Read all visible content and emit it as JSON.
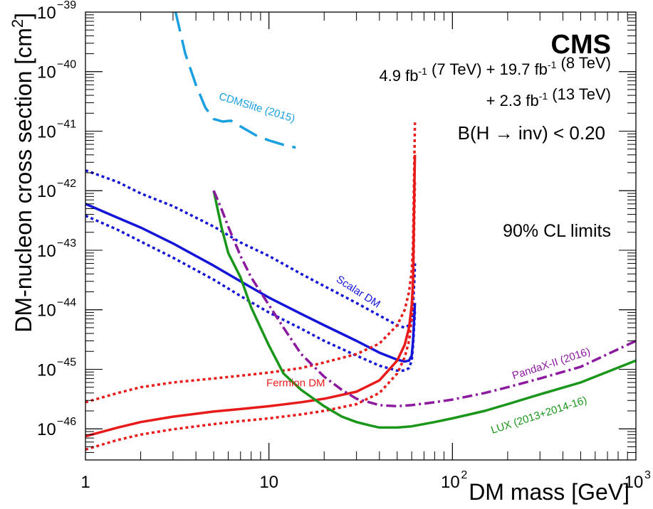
{
  "chart_data": {
    "type": "line",
    "x_scale": "log",
    "y_scale": "log",
    "xlim": [
      1,
      1000
    ],
    "ylim": [
      3e-47,
      1e-39
    ],
    "xlabel": "DM mass [GeV]",
    "ylabel": "DM-nucleon cross section [cm",
    "ylabel_sup": "2",
    "ylabel_end": "]",
    "x_ticks": [
      {
        "value": 1,
        "base": "1",
        "exp": ""
      },
      {
        "value": 10,
        "base": "10",
        "exp": ""
      },
      {
        "value": 100,
        "base": "10",
        "exp": "2"
      },
      {
        "value": 1000,
        "base": "10",
        "exp": "3"
      }
    ],
    "y_ticks": [
      {
        "value": 1e-46,
        "base": "10",
        "exp": "−46"
      },
      {
        "value": 1e-45,
        "base": "10",
        "exp": "−45"
      },
      {
        "value": 1e-44,
        "base": "10",
        "exp": "−44"
      },
      {
        "value": 1e-43,
        "base": "10",
        "exp": "−43"
      },
      {
        "value": 1e-42,
        "base": "10",
        "exp": "−42"
      },
      {
        "value": 1e-41,
        "base": "10",
        "exp": "−41"
      },
      {
        "value": 1e-40,
        "base": "10",
        "exp": "−40"
      },
      {
        "value": 1e-39,
        "base": "10",
        "exp": "−39"
      }
    ],
    "grid": false,
    "annotations": {
      "experiment": "CMS",
      "lumi_line1": [
        {
          "t": "4.9 fb",
          "sup": "-1"
        },
        {
          "t": " (7 TeV) + 19.7 fb",
          "sup": "-1"
        },
        {
          "t": " (8 TeV)",
          "sup": ""
        }
      ],
      "lumi_line2": [
        {
          "t": "+ 2.3 fb",
          "sup": "-1"
        },
        {
          "t": " (13 TeV)",
          "sup": ""
        }
      ],
      "branching": "B(H → inv) < 0.20",
      "cl_limits": "90% CL limits"
    },
    "series": [
      {
        "label": "CDMSlite (2015)",
        "color": "#1aa0e0",
        "style": "dashed",
        "points": [
          [
            3.1,
            1e-39
          ],
          [
            3.5,
            2e-40
          ],
          [
            4.0,
            6e-41
          ],
          [
            4.5,
            2.5e-41
          ],
          [
            5.0,
            1.6e-41
          ],
          [
            5.6,
            1.45e-41
          ],
          [
            6.2,
            1.5e-41
          ],
          [
            7.0,
            1.2e-41
          ],
          [
            8.5,
            8.5e-42
          ],
          [
            10,
            7e-42
          ],
          [
            12,
            5.9e-42
          ],
          [
            14,
            5.3e-42
          ]
        ]
      },
      {
        "label": "Scalar DM",
        "color": "#1515d8",
        "style": "solid",
        "points": [
          [
            1,
            6e-43
          ],
          [
            1.5,
            3.5e-43
          ],
          [
            2,
            2.4e-43
          ],
          [
            3,
            1.3e-43
          ],
          [
            5,
            5.5e-44
          ],
          [
            7,
            3e-44
          ],
          [
            10,
            1.6e-44
          ],
          [
            15,
            8.5e-45
          ],
          [
            20,
            5.5e-45
          ],
          [
            30,
            3e-45
          ],
          [
            40,
            1.9e-45
          ],
          [
            50,
            1.45e-45
          ],
          [
            55,
            1.35e-45
          ],
          [
            58,
            1.4e-45
          ],
          [
            60,
            1.7e-45
          ],
          [
            61,
            3e-45
          ],
          [
            62,
            8e-45
          ],
          [
            62.5,
            1.3e-44
          ]
        ]
      },
      {
        "label": "",
        "color": "#1515d8",
        "style": "dotted",
        "points": [
          [
            1,
            2.2e-42
          ],
          [
            1.5,
            1.4e-42
          ],
          [
            2,
            9e-43
          ],
          [
            3,
            5.5e-43
          ],
          [
            5,
            2.5e-43
          ],
          [
            7,
            1.35e-43
          ],
          [
            10,
            8e-44
          ],
          [
            15,
            4e-44
          ],
          [
            20,
            2.5e-44
          ],
          [
            30,
            1.3e-44
          ],
          [
            40,
            8e-45
          ],
          [
            50,
            5.5e-45
          ],
          [
            55,
            5e-45
          ],
          [
            58,
            5.5e-45
          ],
          [
            60,
            7e-45
          ],
          [
            61,
            1.2e-44
          ],
          [
            62,
            3e-44
          ],
          [
            62.5,
            6e-44
          ]
        ]
      },
      {
        "label": "",
        "color": "#1515d8",
        "style": "dotted",
        "points": [
          [
            1,
            3.8e-43
          ],
          [
            1.5,
            2.2e-43
          ],
          [
            2,
            1.4e-43
          ],
          [
            3,
            7.5e-44
          ],
          [
            5,
            3.2e-44
          ],
          [
            7,
            1.7e-44
          ],
          [
            10,
            9e-45
          ],
          [
            15,
            4.8e-45
          ],
          [
            20,
            3e-45
          ],
          [
            30,
            1.7e-45
          ],
          [
            40,
            1.15e-45
          ],
          [
            50,
            9.5e-46
          ],
          [
            55,
            9.5e-46
          ],
          [
            58,
            1.05e-45
          ],
          [
            60,
            1.4e-45
          ],
          [
            61,
            2.5e-45
          ],
          [
            62,
            6e-45
          ],
          [
            62.5,
            1e-44
          ]
        ]
      },
      {
        "label": "Fermion DM",
        "color": "#e81b1b",
        "style": "solid",
        "points": [
          [
            1,
            7.5e-47
          ],
          [
            1.5,
            1.05e-46
          ],
          [
            2,
            1.3e-46
          ],
          [
            3,
            1.6e-46
          ],
          [
            5,
            1.95e-46
          ],
          [
            7,
            2.15e-46
          ],
          [
            10,
            2.4e-46
          ],
          [
            15,
            2.8e-46
          ],
          [
            20,
            3.2e-46
          ],
          [
            30,
            4.2e-46
          ],
          [
            40,
            6.5e-46
          ],
          [
            50,
            1.4e-45
          ],
          [
            55,
            2.6e-45
          ],
          [
            58,
            5e-45
          ],
          [
            60,
            1.2e-44
          ],
          [
            61,
            3e-44
          ],
          [
            62,
            1e-42
          ],
          [
            62.5,
            4e-42
          ]
        ]
      },
      {
        "label": "",
        "color": "#e81b1b",
        "style": "dotted",
        "points": [
          [
            1,
            2.8e-46
          ],
          [
            1.5,
            4e-46
          ],
          [
            2,
            5e-46
          ],
          [
            3,
            6e-46
          ],
          [
            5,
            7e-46
          ],
          [
            7,
            7.8e-46
          ],
          [
            10,
            8.8e-46
          ],
          [
            15,
            1.05e-45
          ],
          [
            20,
            1.3e-45
          ],
          [
            30,
            1.8e-45
          ],
          [
            40,
            2.7e-45
          ],
          [
            50,
            5.5e-45
          ],
          [
            55,
            1e-44
          ],
          [
            58,
            2e-44
          ],
          [
            60,
            4.5e-44
          ],
          [
            61,
            1.2e-43
          ],
          [
            62,
            3e-42
          ],
          [
            62.5,
            1.4e-41
          ]
        ]
      },
      {
        "label": "",
        "color": "#e81b1b",
        "style": "dotted",
        "points": [
          [
            1,
            4.5e-47
          ],
          [
            1.5,
            6.5e-47
          ],
          [
            2,
            8e-47
          ],
          [
            3,
            9.8e-47
          ],
          [
            5,
            1.2e-46
          ],
          [
            7,
            1.35e-46
          ],
          [
            10,
            1.5e-46
          ],
          [
            15,
            1.75e-46
          ],
          [
            20,
            2e-46
          ],
          [
            30,
            2.6e-46
          ],
          [
            40,
            4e-46
          ],
          [
            50,
            8.5e-46
          ],
          [
            55,
            1.6e-45
          ],
          [
            58,
            3e-45
          ],
          [
            60,
            7e-45
          ],
          [
            61,
            1.8e-44
          ],
          [
            62,
            4e-43
          ],
          [
            62.5,
            1.5e-42
          ]
        ]
      },
      {
        "label": "LUX (2013+2014-16)",
        "color": "#1a961a",
        "style": "solid",
        "points": [
          [
            5,
            1e-42
          ],
          [
            5.5,
            2.5e-43
          ],
          [
            6,
            9e-44
          ],
          [
            7,
            3.5e-44
          ],
          [
            8,
            1.1e-44
          ],
          [
            9,
            5e-45
          ],
          [
            10,
            2.5e-45
          ],
          [
            12,
            8.5e-46
          ],
          [
            15,
            4.5e-46
          ],
          [
            20,
            2.4e-46
          ],
          [
            25,
            1.6e-46
          ],
          [
            30,
            1.3e-46
          ],
          [
            35,
            1.15e-46
          ],
          [
            40,
            1.05e-46
          ],
          [
            50,
            1.05e-46
          ],
          [
            60,
            1.1e-46
          ],
          [
            80,
            1.3e-46
          ],
          [
            100,
            1.5e-46
          ],
          [
            150,
            2e-46
          ],
          [
            200,
            2.6e-46
          ],
          [
            300,
            3.8e-46
          ],
          [
            500,
            6e-46
          ],
          [
            1000,
            1.4e-45
          ]
        ]
      },
      {
        "label": "PandaX-II (2016)",
        "color": "#8b1a9e",
        "style": "dashdot",
        "points": [
          [
            5,
            1e-42
          ],
          [
            5.5,
            5e-43
          ],
          [
            6,
            2.5e-43
          ],
          [
            7,
            8e-44
          ],
          [
            8,
            3.5e-44
          ],
          [
            10,
            1.2e-44
          ],
          [
            12,
            5e-45
          ],
          [
            15,
            1.8e-45
          ],
          [
            20,
            7.5e-46
          ],
          [
            25,
            4.5e-46
          ],
          [
            30,
            3.2e-46
          ],
          [
            40,
            2.5e-46
          ],
          [
            50,
            2.4e-46
          ],
          [
            60,
            2.5e-46
          ],
          [
            80,
            2.8e-46
          ],
          [
            100,
            3.1e-46
          ],
          [
            150,
            4e-46
          ],
          [
            200,
            5e-46
          ],
          [
            300,
            7e-46
          ],
          [
            500,
            1.1e-45
          ],
          [
            1000,
            3e-45
          ]
        ]
      }
    ],
    "curve_labels": [
      {
        "text": "CDMSlite (2015)",
        "color": "#1aa0e0",
        "x": 8.5,
        "y": 2.2e-41,
        "rotate": 17
      },
      {
        "text": "Scalar DM",
        "color": "#1515d8",
        "x": 30,
        "y": 1.8e-44,
        "rotate": 33
      },
      {
        "text": "Fermion DM",
        "color": "#e81b1b",
        "x": 14,
        "y": 5.2e-46,
        "rotate": 0
      },
      {
        "text": "PandaX-II (2016)",
        "color": "#8b1a9e",
        "x": 350,
        "y": 1.1e-45,
        "rotate": -18
      },
      {
        "text": "LUX (2013+2014-16)",
        "color": "#1a961a",
        "x": 300,
        "y": 1.5e-46,
        "rotate": -18
      }
    ]
  }
}
